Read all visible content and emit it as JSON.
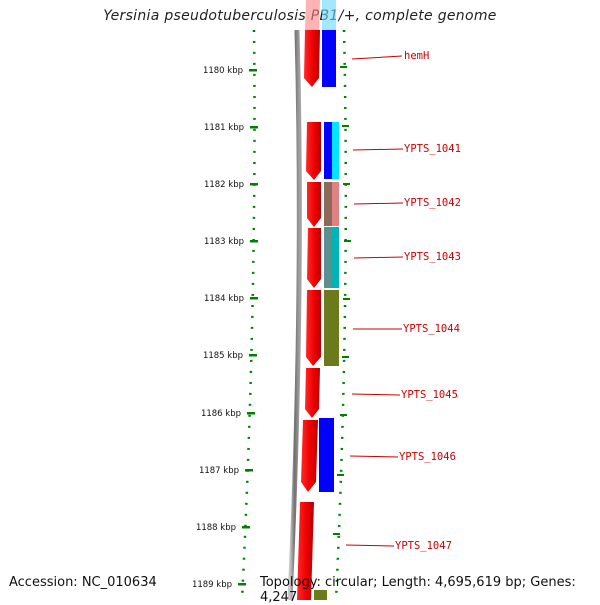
{
  "title": "Yersinia pseudotuberculosis PB1/+, complete genome",
  "footer": {
    "accession": "Accession: NC_010634",
    "topology": "Topology: circular; Length: 4,695,619 bp; Genes: 4,247"
  },
  "scale": {
    "unit": "kbp",
    "ticks": [
      "1180 kbp",
      "1181 kbp",
      "1182 kbp",
      "1183 kbp",
      "1184 kbp",
      "1185 kbp",
      "1186 kbp",
      "1187 kbp",
      "1188 kbp",
      "1189 kbp"
    ]
  },
  "genes": [
    "hemH",
    "YPTS_1041",
    "YPTS_1042",
    "YPTS_1043",
    "YPTS_1044",
    "YPTS_1045",
    "YPTS_1046",
    "YPTS_1047"
  ],
  "colors": {
    "cds_arrow": "#ff0000",
    "gene_label": "#cc0000",
    "tick": "#008000",
    "backbone": "#808080",
    "cog_blue": "#0000ff",
    "cog_cyan": "#00e5ff",
    "cog_brown": "#8b6a5a",
    "cog_pink": "#e08080",
    "cog_teal": "#00aaaa",
    "cog_olive": "#6b7a1a"
  }
}
